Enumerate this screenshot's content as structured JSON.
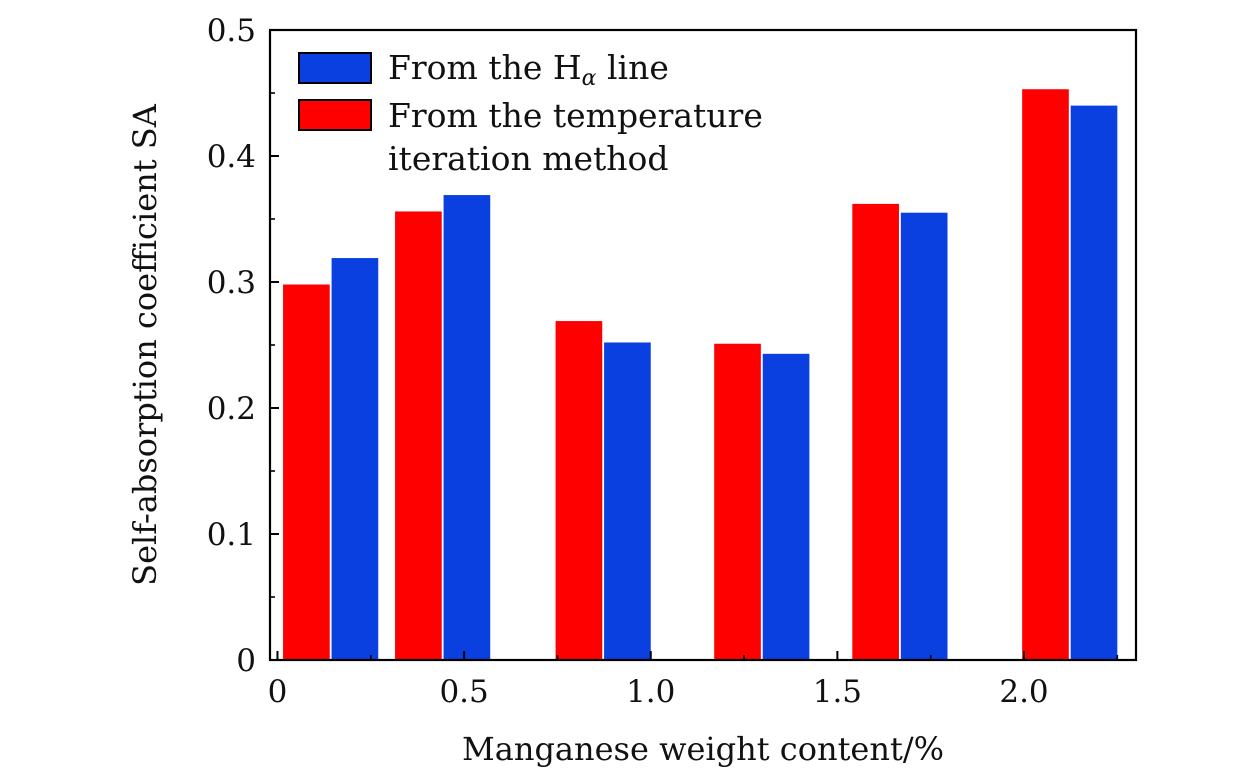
{
  "chart_data": {
    "type": "bar",
    "title": "",
    "xlabel": "Manganese weight content/%",
    "ylabel": "Self-absorption coefficient SA",
    "xlim": [
      -0.02,
      2.3
    ],
    "ylim": [
      0,
      0.5
    ],
    "x_ticks": [
      {
        "value": 0,
        "label": "0"
      },
      {
        "value": 0.5,
        "label": "0.5"
      },
      {
        "value": 1.0,
        "label": "1.0"
      },
      {
        "value": 1.5,
        "label": "1.5"
      },
      {
        "value": 2.0,
        "label": "2.0"
      }
    ],
    "y_ticks": [
      {
        "value": 0,
        "label": "0"
      },
      {
        "value": 0.1,
        "label": "0.1"
      },
      {
        "value": 0.2,
        "label": "0.2"
      },
      {
        "value": 0.3,
        "label": "0.3"
      },
      {
        "value": 0.4,
        "label": "0.4"
      },
      {
        "value": 0.5,
        "label": "0.5"
      }
    ],
    "series": [
      {
        "name": "From the temperature iteration method",
        "color": "#ff0000",
        "x_start": [
          0.015,
          0.315,
          0.745,
          1.17,
          1.54,
          1.995
        ],
        "x_end": [
          0.14,
          0.44,
          0.87,
          1.295,
          1.665,
          2.12
        ],
        "values": [
          0.298,
          0.356,
          0.269,
          0.251,
          0.362,
          0.453
        ]
      },
      {
        "name": "From the Hα line",
        "color": "#0a3fe0",
        "x_start": [
          0.145,
          0.445,
          0.875,
          1.3,
          1.67,
          2.125
        ],
        "x_end": [
          0.27,
          0.57,
          1.0,
          1.425,
          1.795,
          2.25
        ],
        "values": [
          0.319,
          0.369,
          0.252,
          0.243,
          0.355,
          0.44
        ]
      }
    ],
    "legend": {
      "position": "top-left",
      "entries": [
        {
          "series": 1,
          "prefix": "From the H",
          "subscript": "α",
          "suffix": " line"
        },
        {
          "series": 0,
          "line1": "From the temperature",
          "line2": "iteration method"
        }
      ]
    }
  }
}
